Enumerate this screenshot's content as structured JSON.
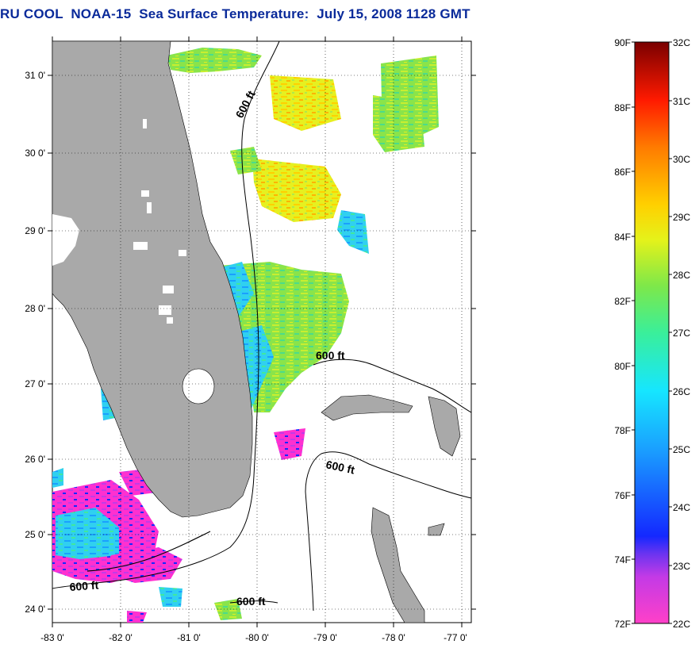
{
  "title": "RU COOL  NOAA-15  Sea Surface Temperature:  July 15, 2008 1128 GMT",
  "axes": {
    "lon_labels": [
      "-83 0'",
      "-82 0'",
      "-81 0'",
      "-80 0'",
      "-79 0'",
      "-78 0'",
      "-77 0'"
    ],
    "lat_labels": [
      "24 0'",
      "25 0'",
      "26 0'",
      "27 0'",
      "28 0'",
      "29 0'",
      "30 0'",
      "31 0'"
    ]
  },
  "contours": {
    "label": "600 ft"
  },
  "colorbar": {
    "f_labels": [
      "90F",
      "88F",
      "86F",
      "84F",
      "82F",
      "80F",
      "78F",
      "76F",
      "74F",
      "72F"
    ],
    "c_labels": [
      "32C",
      "31C",
      "30C",
      "29C",
      "28C",
      "27C",
      "26C",
      "25C",
      "24C",
      "23C",
      "22C"
    ]
  },
  "colors": {
    "title": "#0a2a9a",
    "land": "#a9a9a9",
    "sst_warm": "#ffd000",
    "sst_mid": "#7de84a",
    "sst_cool": "#1aa0ff",
    "sst_cold": "#ff2fd0"
  }
}
